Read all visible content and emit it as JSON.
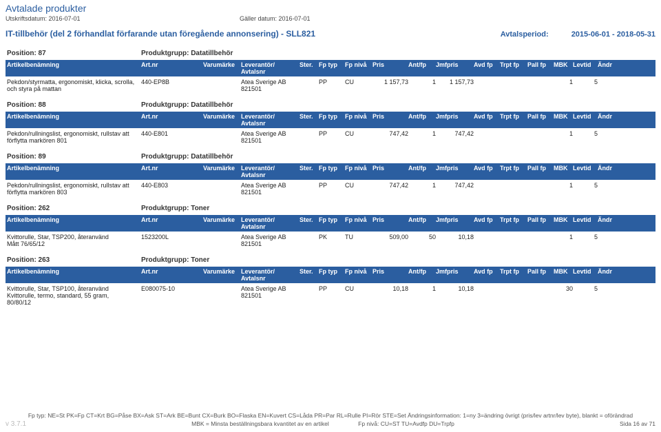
{
  "header": {
    "title": "Avtalade produkter",
    "print_label": "Utskriftsdatum: 2016-07-01",
    "valid_label": "Gäller datum: 2016-07-01"
  },
  "subhead": {
    "left": "IT-tillbehör (del 2 förhandlat förfarande utan föregående annonsering) - SLL821",
    "period_label": "Avtalsperiod:",
    "period_value": "2015-06-01 - 2018-05-31"
  },
  "columns": {
    "c1": "Artikelbenämning",
    "c2": "Art.nr",
    "c3": "Varumärke",
    "c4a": "Leverantör/",
    "c4b": "Avtalsnr",
    "c5": "Ster.",
    "c6": "Fp typ",
    "c7": "Fp nivå",
    "c8": "Pris",
    "c9": "Ant/fp",
    "c10": "Jmfpris",
    "c11": "Avd fp",
    "c12": "Trpt fp",
    "c13": "Pall fp",
    "c14": "MBK",
    "c15": "Levtid",
    "c16": "Ändr"
  },
  "sections": [
    {
      "pos": "Position: 87",
      "group": "Produktgrupp: Datatillbehör",
      "row": {
        "art_a": "Pekdon/styrmatta, ergonomiskt, klicka, scrolla,",
        "art_b": "och styra på mattan",
        "artnr": "440-EP8B",
        "lev_a": "Atea Sverige AB",
        "lev_b": "821501",
        "fptyp": "PP",
        "fpniva": "CU",
        "pris": "1 157,73",
        "ant": "1",
        "jmf": "1 157,73",
        "mbk": "1",
        "levt": "5"
      }
    },
    {
      "pos": "Position: 88",
      "group": "Produktgrupp: Datatillbehör",
      "row": {
        "art_a": "Pekdon/rullningslist, ergonomiskt, rullstav att",
        "art_b": "förflytta markören 801",
        "artnr": "440-E801",
        "lev_a": "Atea Sverige AB",
        "lev_b": "821501",
        "fptyp": "PP",
        "fpniva": "CU",
        "pris": "747,42",
        "ant": "1",
        "jmf": "747,42",
        "mbk": "1",
        "levt": "5"
      }
    },
    {
      "pos": "Position: 89",
      "group": "Produktgrupp: Datatillbehör",
      "row": {
        "art_a": "Pekdon/rullningslist, ergonomiskt, rullstav att",
        "art_b": "förflytta markören 803",
        "artnr": "440-E803",
        "lev_a": "Atea Sverige AB",
        "lev_b": "821501",
        "fptyp": "PP",
        "fpniva": "CU",
        "pris": "747,42",
        "ant": "1",
        "jmf": "747,42",
        "mbk": "1",
        "levt": "5"
      }
    },
    {
      "pos": "Position: 262",
      "group": "Produktgrupp: Toner",
      "row": {
        "art_a": "Kvittorulle, Star, TSP200, återanvänd",
        "art_b": "Mått 76/65/12",
        "artnr": "1523200L",
        "lev_a": "Atea Sverige AB",
        "lev_b": "821501",
        "fptyp": "PK",
        "fpniva": "TU",
        "pris": "509,00",
        "ant": "50",
        "jmf": "10,18",
        "mbk": "1",
        "levt": "5"
      }
    },
    {
      "pos": "Position: 263",
      "group": "Produktgrupp: Toner",
      "row": {
        "art_a": "Kvittorulle, Star, TSP100, återanvänd",
        "art_b": "Kvittorulle, termo, standard, 55 gram,",
        "art_c": "80/80/12",
        "artnr": "E080075-10",
        "lev_a": "Atea Sverige AB",
        "lev_b": "821501",
        "fptyp": "PP",
        "fpniva": "CU",
        "pris": "10,18",
        "ant": "1",
        "jmf": "10,18",
        "mbk": "30",
        "levt": "5"
      }
    }
  ],
  "footer": {
    "line1": "Fp typ: NE=St PK=Fp CT=Krt BG=Påse BX=Ask ST=Ark BE=Bunt CX=Burk BO=Flaska EN=Kuvert CS=Låda PR=Par RL=Rulle PI=Rör STE=Set Ändringsinformation: 1=ny 3=ändring övrigt (pris/lev artnr/lev byte), blankt = oförändrad",
    "ver": "v 3.7.1",
    "mbk": "MBK = Minsta beställningsbara kvantitet av en artikel",
    "fpniva": "Fp nivå: CU=ST TU=Avdfp DU=Trpfp",
    "page": "Sida 16 av 71"
  }
}
